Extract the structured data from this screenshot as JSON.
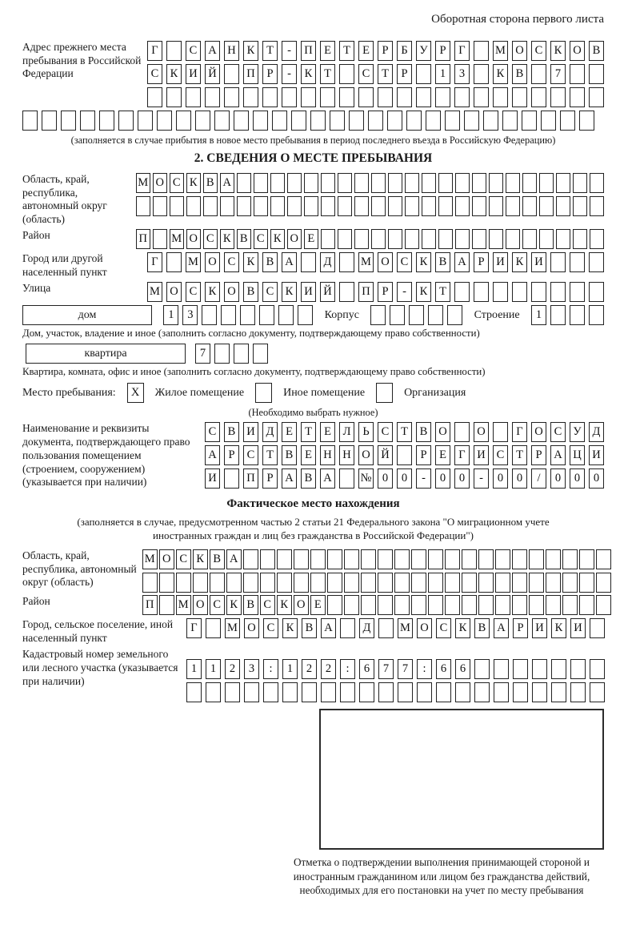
{
  "theme": {
    "ink": "#1a1a1a",
    "box_border": "#222222"
  },
  "page": {
    "header_note": "Оборотная сторона первого листа"
  },
  "prev_address": {
    "label": "Адрес прежнего места пребывания в Российской Федерации",
    "rows": [
      {
        "t": "Г САНКТ-ПЕТЕРБУРГ МОСКОВ",
        "n": 24
      },
      {
        "t": "СКИЙ ПР-КТ СТР 13 КВ 7",
        "n": 24
      },
      {
        "t": "",
        "n": 24
      },
      {
        "t": "",
        "n": 30
      }
    ],
    "note": "(заполняется в случае прибытия в новое место пребывания в период последнего въезда в Российскую Федерацию)"
  },
  "section2": {
    "title": "2. СВЕДЕНИЯ О МЕСТЕ ПРЕБЫВАНИЯ",
    "region": {
      "label": "Область, край, республика, автономный округ (область)",
      "rows": [
        {
          "t": "МОСКВА",
          "n": 28
        },
        {
          "t": "",
          "n": 28
        }
      ]
    },
    "district": {
      "label": "Район",
      "row": {
        "t": "П МОСКВСКОЕ",
        "n": 28
      }
    },
    "city": {
      "label": "Город или другой населенный пункт",
      "row": {
        "t": "Г МОСКВА Д МОСКВАРИКИ",
        "n": 24
      }
    },
    "street": {
      "label": "Улица",
      "row": {
        "t": "МОСКОВСКИЙ ПР-КТ",
        "n": 24
      }
    },
    "house": {
      "box_label": "дом",
      "cells": {
        "t": "13",
        "n": 8
      },
      "korpus_label": "Корпус",
      "korpus_cells": {
        "t": "",
        "n": 5
      },
      "stroenie_label": "Строение",
      "stroenie_cells": {
        "t": "1",
        "n": 4
      }
    },
    "house_note": "Дом, участок, владение и иное (заполнить согласно документу, подтверждающему право собственности)",
    "apartment": {
      "box_label": "квартира",
      "cells": {
        "t": "7",
        "n": 4
      }
    },
    "apartment_note": "Квартира, комната, офис и иное (заполнить согласно документу, подтверждающему право собственности)",
    "stay": {
      "label": "Место пребывания:",
      "options": [
        {
          "label": "Жилое помещение",
          "mark": {
            "t": "X",
            "n": 1
          }
        },
        {
          "label": "Иное помещение",
          "mark": {
            "t": "",
            "n": 1
          }
        },
        {
          "label": "Организация",
          "mark": {
            "t": "",
            "n": 1
          }
        }
      ],
      "note": "(Необходимо выбрать нужное)"
    },
    "document": {
      "label": "Наименование и реквизиты документа, подтверждающего право пользования помещением (строением, сооружением) (указывается при наличии)",
      "rows": [
        {
          "t": "СВИДЕТЕЛЬСТВО О ГОСУД",
          "n": 21
        },
        {
          "t": "АРСТВЕННОЙ РЕГИСТРАЦИ",
          "n": 21
        },
        {
          "t": "И ПРАВА №00-00-00/000",
          "n": 21
        }
      ]
    }
  },
  "actual_location": {
    "title": "Фактическое место нахождения",
    "note": "(заполняется в случае, предусмотренном частью 2 статьи 21 Федерального закона \"О миграционном учете иностранных граждан и лиц без гражданства в Российской Федерации\")",
    "region": {
      "label": "Область, край, республика, автономный округ (область)",
      "rows": [
        {
          "t": "МОСКВА",
          "n": 28
        },
        {
          "t": "",
          "n": 28
        }
      ]
    },
    "district": {
      "label": "Район",
      "row": {
        "t": "П МОСКВСКОЕ",
        "n": 28
      }
    },
    "city": {
      "label": "Город, сельское поселение, иной населенный пункт",
      "row": {
        "t": "Г МОСКВА Д МОСКВАРИКИ",
        "n": 22
      }
    },
    "cadastre": {
      "label": "Кадастровый номер земельного или лесного участка (указывается при наличии)",
      "rows": [
        {
          "t": "1123:122:677:66",
          "n": 22
        },
        {
          "t": "",
          "n": 22
        }
      ]
    },
    "stamp_note": "Отметка о подтверждении выполнения принимающей стороной и иностранным гражданином или лицом без гражданства действий, необходимых для его постановки на учет по месту пребывания"
  }
}
